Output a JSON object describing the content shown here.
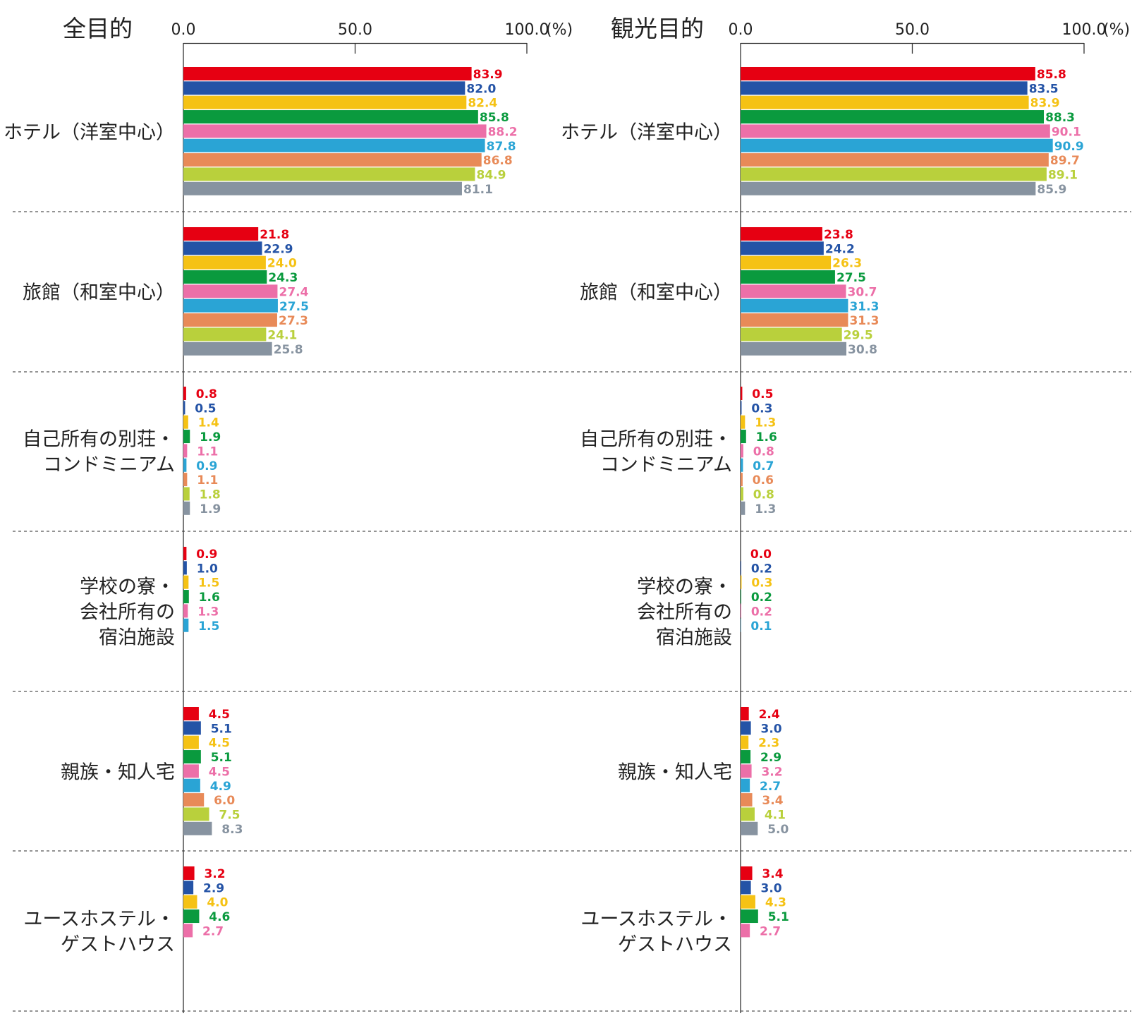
{
  "colors": [
    "#e60012",
    "#2453a6",
    "#f5c214",
    "#0a9a3e",
    "#ec6fa8",
    "#2aa4d5",
    "#e88a58",
    "#b9d03c",
    "#8793a0"
  ],
  "chart_data": [
    {
      "type": "bar",
      "orientation": "horizontal",
      "title": "全目的",
      "unit": "(%)",
      "xlim": [
        0,
        100
      ],
      "ticks": [
        "0.0",
        "50.0",
        "100.0"
      ],
      "categories": [
        "ホテル（洋室中心）",
        "旅館（和室中心）",
        "自己所有の別荘・コンドミニアム",
        "学校の寮・会社所有の宿泊施設",
        "親族・知人宅",
        "ユースホステル・ゲストハウス"
      ],
      "category_lines": [
        [
          "ホテル（洋室中心）"
        ],
        [
          "旅館（和室中心）"
        ],
        [
          "自己所有の別荘・",
          "コンドミニアム"
        ],
        [
          "学校の寮・",
          "会社所有の",
          "宿泊施設"
        ],
        [
          "親族・知人宅"
        ],
        [
          "ユースホステル・",
          "ゲストハウス"
        ]
      ],
      "values": [
        [
          83.9,
          82.0,
          82.4,
          85.8,
          88.2,
          87.8,
          86.8,
          84.9,
          81.1
        ],
        [
          21.8,
          22.9,
          24.0,
          24.3,
          27.4,
          27.5,
          27.3,
          24.1,
          25.8
        ],
        [
          0.8,
          0.5,
          1.4,
          1.9,
          1.1,
          0.9,
          1.1,
          1.8,
          1.9
        ],
        [
          0.9,
          1.0,
          1.5,
          1.6,
          1.3,
          1.5
        ],
        [
          4.5,
          5.1,
          4.5,
          5.1,
          4.5,
          4.9,
          6.0,
          7.5,
          8.3
        ],
        [
          3.2,
          2.9,
          4.0,
          4.6,
          2.7
        ]
      ],
      "grid": false,
      "legend": "none"
    },
    {
      "type": "bar",
      "orientation": "horizontal",
      "title": "観光目的",
      "unit": "(%)",
      "xlim": [
        0,
        100
      ],
      "ticks": [
        "0.0",
        "50.0",
        "100.0"
      ],
      "categories": [
        "ホテル（洋室中心）",
        "旅館（和室中心）",
        "自己所有の別荘・コンドミニアム",
        "学校の寮・会社所有の宿泊施設",
        "親族・知人宅",
        "ユースホステル・ゲストハウス"
      ],
      "category_lines": [
        [
          "ホテル（洋室中心）"
        ],
        [
          "旅館（和室中心）"
        ],
        [
          "自己所有の別荘・",
          "コンドミニアム"
        ],
        [
          "学校の寮・",
          "会社所有の",
          "宿泊施設"
        ],
        [
          "親族・知人宅"
        ],
        [
          "ユースホステル・",
          "ゲストハウス"
        ]
      ],
      "values": [
        [
          85.8,
          83.5,
          83.9,
          88.3,
          90.1,
          90.9,
          89.7,
          89.1,
          85.9
        ],
        [
          23.8,
          24.2,
          26.3,
          27.5,
          30.7,
          31.3,
          31.3,
          29.5,
          30.8
        ],
        [
          0.5,
          0.3,
          1.3,
          1.6,
          0.8,
          0.7,
          0.6,
          0.8,
          1.3
        ],
        [
          0.0,
          0.2,
          0.3,
          0.2,
          0.2,
          0.1
        ],
        [
          2.4,
          3.0,
          2.3,
          2.9,
          3.2,
          2.7,
          3.4,
          4.1,
          5.0
        ],
        [
          3.4,
          3.0,
          4.3,
          5.1,
          2.7
        ]
      ],
      "grid": false,
      "legend": "none"
    }
  ]
}
